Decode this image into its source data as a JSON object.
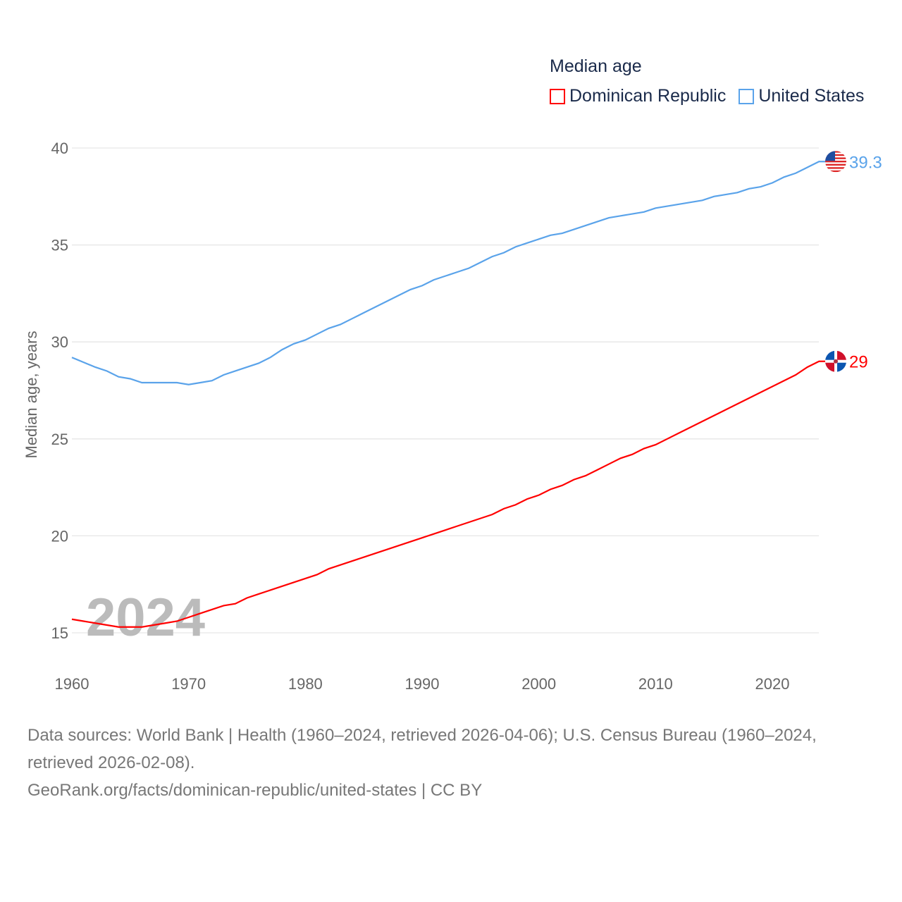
{
  "chart_data": {
    "type": "line",
    "title": "Median age",
    "ylabel": "Median age, years",
    "xlabel": "",
    "xlim": [
      1960,
      2024
    ],
    "ylim": [
      15,
      40
    ],
    "xticks": [
      1960,
      1970,
      1980,
      1990,
      2000,
      2010,
      2020
    ],
    "yticks": [
      15,
      20,
      25,
      30,
      35,
      40
    ],
    "grid": true,
    "legend_position": "top-right",
    "watermark_year": "2024",
    "x": [
      1960,
      1961,
      1962,
      1963,
      1964,
      1965,
      1966,
      1967,
      1968,
      1969,
      1970,
      1971,
      1972,
      1973,
      1974,
      1975,
      1976,
      1977,
      1978,
      1979,
      1980,
      1981,
      1982,
      1983,
      1984,
      1985,
      1986,
      1987,
      1988,
      1989,
      1990,
      1991,
      1992,
      1993,
      1994,
      1995,
      1996,
      1997,
      1998,
      1999,
      2000,
      2001,
      2002,
      2003,
      2004,
      2005,
      2006,
      2007,
      2008,
      2009,
      2010,
      2011,
      2012,
      2013,
      2014,
      2015,
      2016,
      2017,
      2018,
      2019,
      2020,
      2021,
      2022,
      2023,
      2024
    ],
    "series": [
      {
        "name": "Dominican Republic",
        "color": "#ff0000",
        "end_label": "29",
        "flag": "dominican-republic",
        "values": [
          15.7,
          15.6,
          15.5,
          15.4,
          15.3,
          15.3,
          15.3,
          15.4,
          15.5,
          15.6,
          15.8,
          16.0,
          16.2,
          16.4,
          16.5,
          16.8,
          17.0,
          17.2,
          17.4,
          17.6,
          17.8,
          18.0,
          18.3,
          18.5,
          18.7,
          18.9,
          19.1,
          19.3,
          19.5,
          19.7,
          19.9,
          20.1,
          20.3,
          20.5,
          20.7,
          20.9,
          21.1,
          21.4,
          21.6,
          21.9,
          22.1,
          22.4,
          22.6,
          22.9,
          23.1,
          23.4,
          23.7,
          24.0,
          24.2,
          24.5,
          24.7,
          25.0,
          25.3,
          25.6,
          25.9,
          26.2,
          26.5,
          26.8,
          27.1,
          27.4,
          27.7,
          28.0,
          28.3,
          28.7,
          29.0
        ]
      },
      {
        "name": "United States",
        "color": "#5aa3ea",
        "end_label": "39.3",
        "flag": "united-states",
        "values": [
          29.2,
          28.95,
          28.7,
          28.5,
          28.2,
          28.1,
          27.9,
          27.9,
          27.9,
          27.9,
          27.8,
          27.9,
          28.0,
          28.3,
          28.5,
          28.7,
          28.9,
          29.2,
          29.6,
          29.9,
          30.1,
          30.4,
          30.7,
          30.9,
          31.2,
          31.5,
          31.8,
          32.1,
          32.4,
          32.7,
          32.9,
          33.2,
          33.4,
          33.6,
          33.8,
          34.1,
          34.4,
          34.6,
          34.9,
          35.1,
          35.3,
          35.5,
          35.6,
          35.8,
          36.0,
          36.2,
          36.4,
          36.5,
          36.6,
          36.7,
          36.9,
          37.0,
          37.1,
          37.2,
          37.3,
          37.5,
          37.6,
          37.7,
          37.9,
          38.0,
          38.2,
          38.5,
          38.7,
          39.0,
          39.3
        ]
      }
    ]
  },
  "footer": {
    "sources": "Data sources: World Bank | Health (1960–2024, retrieved 2026-04-06); U.S. Census Bureau (1960–2024, retrieved 2026-02-08).",
    "link": "GeoRank.org/facts/dominican-republic/united-states | CC BY"
  }
}
